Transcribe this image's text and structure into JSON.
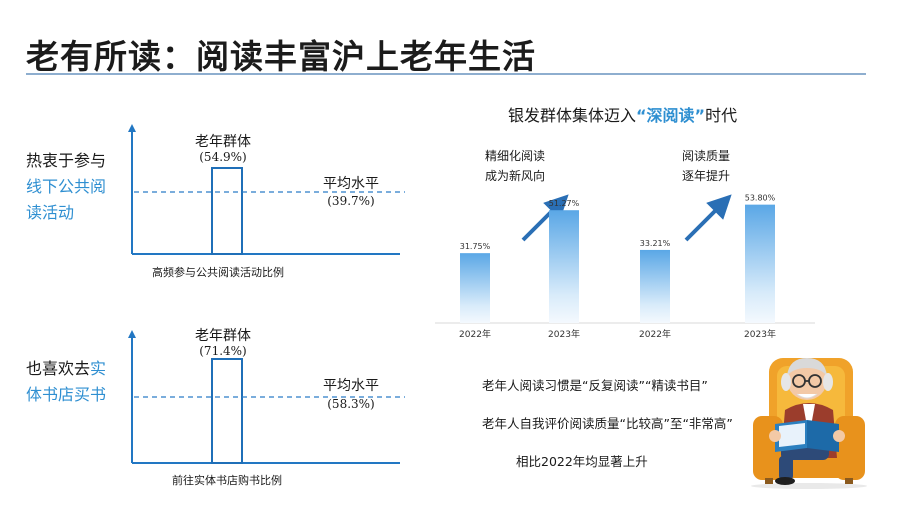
{
  "title": "老有所读：阅读丰富沪上老年生活",
  "colors": {
    "accent": "#2f8fd1",
    "bar_outline": "#1f6fb8",
    "rule": "#8eaecf"
  },
  "panel1": {
    "label_plain": "热衷于参与",
    "label_hl": "线下公共阅读活动",
    "bar_label": "老年群体",
    "bar_value": "(54.9%)",
    "avg_label": "平均水平",
    "avg_value": "(39.7%)",
    "caption": "高频参与公共阅读活动比例",
    "elder_pct": 54.9,
    "avg_pct": 39.7
  },
  "panel2": {
    "label_plain": "也喜欢去",
    "label_hl": "实体书店买书",
    "bar_label": "老年群体",
    "bar_value": "(71.4%)",
    "avg_label": "平均水平",
    "avg_value": "(58.3%)",
    "caption": "前往实体书店购书比例",
    "elder_pct": 71.4,
    "avg_pct": 58.3
  },
  "right_chart": {
    "title_pre": "银发群体集体迈入",
    "title_quote": "“深阅读”",
    "title_post": "时代",
    "note1": [
      "精细化阅读",
      "成为新风向"
    ],
    "note2": [
      "阅读质量",
      "逐年提升"
    ]
  },
  "summary": {
    "line1": "老年人阅读习惯是“反复阅读”“精读书目”",
    "line2": "老年人自我评价阅读质量“比较高”至“非常高”",
    "line3": "相比2022年均显著上升"
  },
  "chart_data": [
    {
      "type": "bar",
      "categories": [
        "老年群体",
        "平均水平"
      ],
      "values": [
        54.9,
        39.7
      ],
      "xlabel": "高频参与公共阅读活动比例"
    },
    {
      "type": "bar",
      "categories": [
        "老年群体",
        "平均水平"
      ],
      "values": [
        71.4,
        58.3
      ],
      "xlabel": "前往实体书店购书比例"
    },
    {
      "type": "bar",
      "title": "银发群体集体迈入“深阅读”时代",
      "groups": [
        {
          "name": "精细化阅读成为新风向",
          "categories": [
            "2022年",
            "2023年"
          ],
          "values": [
            31.75,
            51.27
          ],
          "labels": [
            "31.75%",
            "51.27%"
          ]
        },
        {
          "name": "阅读质量逐年提升",
          "categories": [
            "2022年",
            "2023年"
          ],
          "values": [
            33.21,
            53.8
          ],
          "labels": [
            "33.21%",
            "53.80%"
          ]
        }
      ]
    }
  ]
}
